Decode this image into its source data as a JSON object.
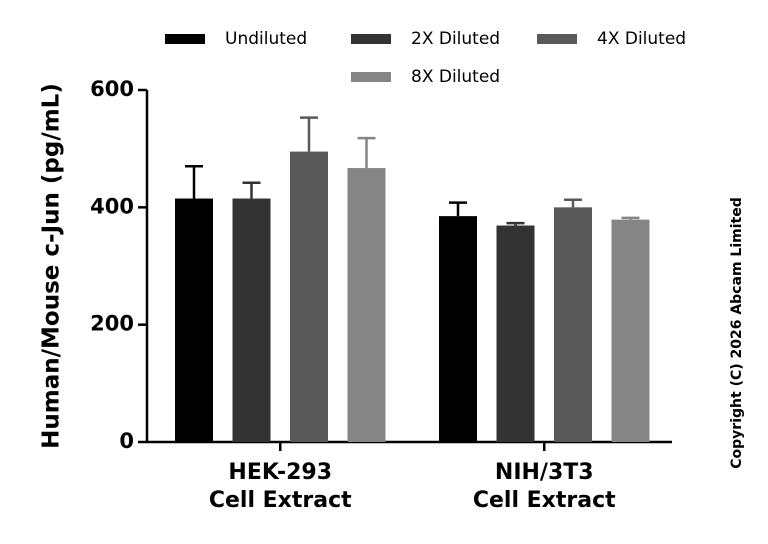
{
  "chart_data": {
    "type": "bar",
    "categories": [
      [
        "HEK-293",
        "Cell Extract"
      ],
      [
        "NIH/3T3",
        "Cell Extract"
      ]
    ],
    "series": [
      {
        "name": "Undiluted",
        "color": "#000000",
        "values": [
          415,
          385
        ],
        "errors": [
          55,
          23
        ]
      },
      {
        "name": "2X Diluted",
        "color": "#333333",
        "values": [
          415,
          369
        ],
        "errors": [
          27,
          4
        ]
      },
      {
        "name": "4X Diluted",
        "color": "#595959",
        "values": [
          495,
          400
        ],
        "errors": [
          58,
          13
        ]
      },
      {
        "name": "8X Diluted",
        "color": "#858585",
        "values": [
          467,
          379
        ],
        "errors": [
          51,
          3
        ]
      }
    ],
    "ylabel": "Human/Mouse c-Jun (pg/mL)",
    "xlabel": "",
    "ylim": [
      0,
      600
    ],
    "yticks": [
      "0",
      "200",
      "400",
      "600"
    ],
    "grid": false,
    "legend_position": "top"
  },
  "copyright": "Copyright (C) 2026 Abcam Limited"
}
